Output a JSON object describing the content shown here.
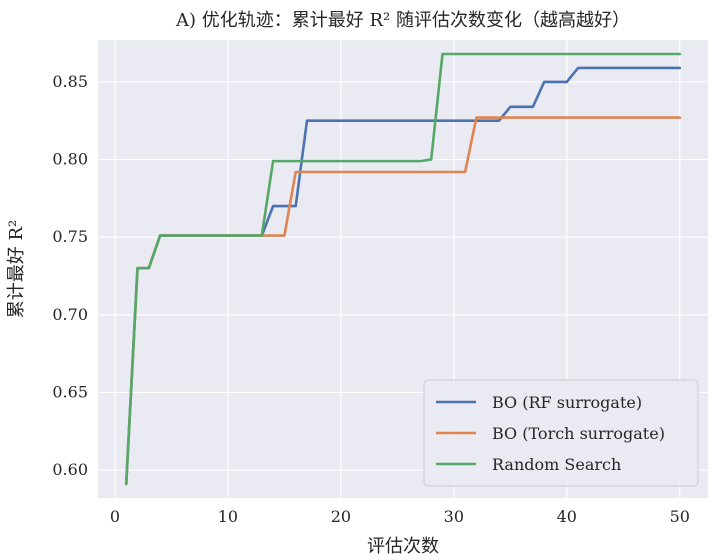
{
  "chart_data": {
    "type": "line",
    "title": "A) 优化轨迹：累计最好 R² 随评估次数变化（越高越好）",
    "xlabel": "评估次数",
    "ylabel": "累计最好 R²",
    "xlim": [
      -1.5,
      52.5
    ],
    "ylim": [
      0.582,
      0.877
    ],
    "xticks": [
      0,
      10,
      20,
      30,
      40,
      50
    ],
    "yticks": [
      0.6,
      0.65,
      0.7,
      0.75,
      0.8,
      0.85
    ],
    "xtick_labels": [
      "0",
      "10",
      "20",
      "30",
      "40",
      "50"
    ],
    "ytick_labels": [
      "0.60",
      "0.65",
      "0.70",
      "0.75",
      "0.80",
      "0.85"
    ],
    "grid": true,
    "legend_position": "bottom-right",
    "series": [
      {
        "name": "BO (RF surrogate)",
        "color": "#4C72B0",
        "points": [
          [
            1,
            0.591
          ],
          [
            2,
            0.73
          ],
          [
            3,
            0.73
          ],
          [
            4,
            0.751
          ],
          [
            13,
            0.751
          ],
          [
            14,
            0.77
          ],
          [
            16,
            0.77
          ],
          [
            17,
            0.825
          ],
          [
            34,
            0.825
          ],
          [
            35,
            0.834
          ],
          [
            37,
            0.834
          ],
          [
            38,
            0.85
          ],
          [
            40,
            0.85
          ],
          [
            41,
            0.859
          ],
          [
            50,
            0.859
          ]
        ]
      },
      {
        "name": "BO (Torch surrogate)",
        "color": "#DD8452",
        "points": [
          [
            1,
            0.591
          ],
          [
            2,
            0.73
          ],
          [
            3,
            0.73
          ],
          [
            4,
            0.751
          ],
          [
            15,
            0.751
          ],
          [
            16,
            0.792
          ],
          [
            31,
            0.792
          ],
          [
            32,
            0.827
          ],
          [
            50,
            0.827
          ]
        ]
      },
      {
        "name": "Random Search",
        "color": "#55A868",
        "points": [
          [
            1,
            0.591
          ],
          [
            2,
            0.73
          ],
          [
            3,
            0.73
          ],
          [
            4,
            0.751
          ],
          [
            13,
            0.751
          ],
          [
            14,
            0.799
          ],
          [
            27,
            0.799
          ],
          [
            28,
            0.8
          ],
          [
            29,
            0.868
          ],
          [
            50,
            0.868
          ]
        ]
      }
    ]
  }
}
